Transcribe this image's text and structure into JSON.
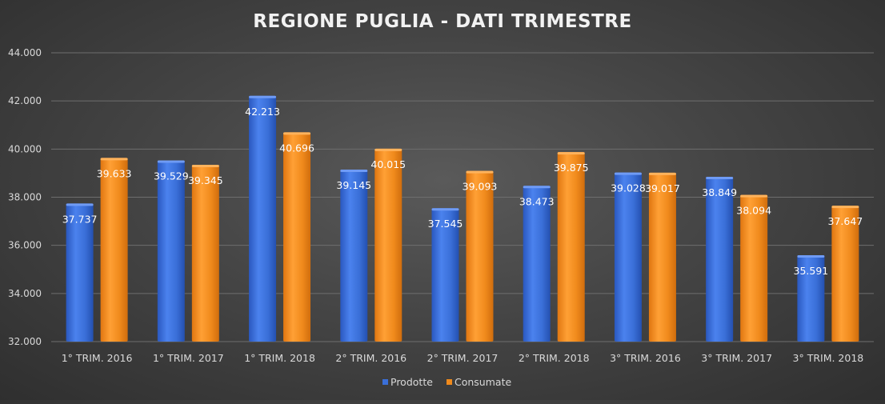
{
  "chart_data": {
    "type": "bar",
    "title": "REGIONE PUGLIA - DATI TRIMESTRE",
    "categories": [
      "1° TRIM. 2016",
      "1° TRIM. 2017",
      "1° TRIM. 2018",
      "2° TRIM. 2016",
      "2° TRIM. 2017",
      "2° TRIM. 2018",
      "3° TRIM. 2016",
      "3° TRIM. 2017",
      "3° TRIM. 2018"
    ],
    "series": [
      {
        "name": "Prodotte",
        "color": "#3a6fd8",
        "values": [
          37737,
          39529,
          42213,
          39145,
          37545,
          38473,
          39028,
          38849,
          35591
        ],
        "labels": [
          "37.737",
          "39.529",
          "42.213",
          "39.145",
          "37.545",
          "38.473",
          "39.028",
          "38.849",
          "35.591"
        ]
      },
      {
        "name": "Consumate",
        "color": "#f08a1c",
        "values": [
          39633,
          39345,
          40696,
          40015,
          39093,
          39875,
          39017,
          38094,
          37647
        ],
        "labels": [
          "39.633",
          "39.345",
          "40.696",
          "40.015",
          "39.093",
          "39.875",
          "39.017",
          "38.094",
          "37.647"
        ]
      }
    ],
    "ylim": [
      32000,
      44000
    ],
    "yticks": [
      32000,
      34000,
      36000,
      38000,
      40000,
      42000,
      44000
    ],
    "ytick_labels": [
      "32.000",
      "34.000",
      "36.000",
      "38.000",
      "40.000",
      "42.000",
      "44.000"
    ],
    "grid": true,
    "legend": "bottom"
  }
}
